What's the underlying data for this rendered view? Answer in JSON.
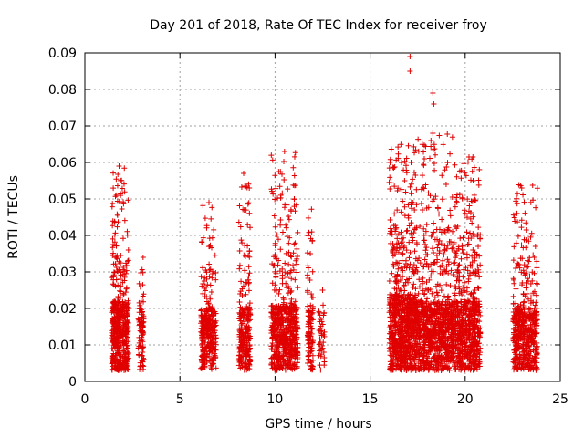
{
  "chart_data": {
    "type": "scatter",
    "title": "Day 201 of 2018, Rate Of TEC Index for receiver froy",
    "xlabel": "GPS time / hours",
    "ylabel": "ROTI / TECUs",
    "xlim": [
      0,
      25
    ],
    "ylim": [
      0,
      0.09
    ],
    "x_ticks": [
      0,
      5,
      10,
      15,
      20,
      25
    ],
    "x_tick_labels": [
      "0",
      "5",
      "10",
      "15",
      "20",
      "25"
    ],
    "y_ticks": [
      0,
      0.01,
      0.02,
      0.03,
      0.04,
      0.05,
      0.06,
      0.07,
      0.08,
      0.09
    ],
    "y_tick_labels": [
      "0",
      "0.01",
      "0.02",
      "0.03",
      "0.04",
      "0.05",
      "0.06",
      "0.07",
      "0.08",
      "0.09"
    ],
    "grid": true,
    "marker": "+",
    "series": [
      {
        "name": "ROTI",
        "color": "#e00000",
        "clusters": [
          {
            "x0": 1.4,
            "x1": 2.3,
            "count": 520,
            "base": 0.012,
            "max": 0.059
          },
          {
            "x0": 2.8,
            "x1": 3.1,
            "count": 90,
            "base": 0.012,
            "max": 0.036
          },
          {
            "x0": 6.1,
            "x1": 6.9,
            "count": 330,
            "base": 0.01,
            "max": 0.049
          },
          {
            "x0": 8.1,
            "x1": 8.7,
            "count": 260,
            "base": 0.01,
            "max": 0.057
          },
          {
            "x0": 9.8,
            "x1": 11.2,
            "count": 620,
            "base": 0.011,
            "max": 0.063
          },
          {
            "x0": 11.7,
            "x1": 12.0,
            "count": 110,
            "base": 0.01,
            "max": 0.048
          },
          {
            "x0": 12.3,
            "x1": 12.6,
            "count": 40,
            "base": 0.01,
            "max": 0.025
          },
          {
            "x0": 16.0,
            "x1": 17.4,
            "count": 820,
            "base": 0.014,
            "max": 0.065
          },
          {
            "x0": 17.4,
            "x1": 19.4,
            "count": 900,
            "base": 0.012,
            "max": 0.068
          },
          {
            "x0": 19.4,
            "x1": 20.8,
            "count": 650,
            "base": 0.012,
            "max": 0.062
          },
          {
            "x0": 22.5,
            "x1": 23.8,
            "count": 520,
            "base": 0.01,
            "max": 0.055
          }
        ],
        "highlight_points": [
          {
            "x": 17.1,
            "y": 0.089
          },
          {
            "x": 17.1,
            "y": 0.085
          },
          {
            "x": 18.3,
            "y": 0.079
          },
          {
            "x": 18.35,
            "y": 0.076
          },
          {
            "x": 18.3,
            "y": 0.068
          },
          {
            "x": 18.2,
            "y": 0.066
          },
          {
            "x": 10.5,
            "y": 0.063
          },
          {
            "x": 20.2,
            "y": 0.0615
          },
          {
            "x": 1.8,
            "y": 0.059
          },
          {
            "x": 8.35,
            "y": 0.057
          },
          {
            "x": 19.0,
            "y": 0.054
          },
          {
            "x": 12.5,
            "y": 0.025
          }
        ]
      }
    ]
  }
}
